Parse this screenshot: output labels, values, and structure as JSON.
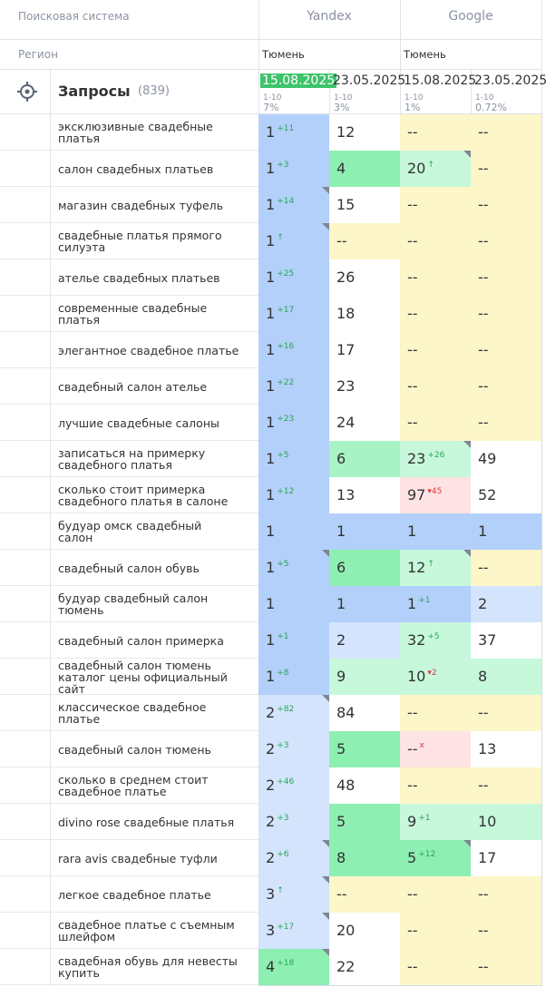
{
  "header": {
    "search_engine_label": "Поисковая система",
    "engines": [
      "Yandex",
      "Google"
    ],
    "region_label": "Регион",
    "regions": [
      "Тюмень",
      "Тюмень"
    ],
    "queries_label": "Запросы",
    "queries_count": "(839)",
    "dates": [
      {
        "date": "15.08.2025",
        "range": "1-10",
        "share": "7%",
        "highlight": true
      },
      {
        "date": "23.05.2025",
        "range": "1-10",
        "share": "3%",
        "highlight": false
      },
      {
        "date": "15.08.2025",
        "range": "1-10",
        "share": "1%",
        "highlight": false
      },
      {
        "date": "23.05.2025",
        "range": "1-10",
        "share": "0.72%",
        "highlight": false
      }
    ]
  },
  "rows": [
    {
      "query": "эксклюзивные свадебные платья",
      "cells": [
        {
          "value": 1,
          "change": "+11",
          "bg": "#b3d0fa"
        },
        {
          "value": 12,
          "bg": "#ffffff"
        },
        {
          "value": "--",
          "bg": "#fdf6c8"
        },
        {
          "value": "--",
          "bg": "#fdf6c8"
        }
      ]
    },
    {
      "query": "салон свадебных платьев",
      "cells": [
        {
          "value": 1,
          "change": "+3",
          "bg": "#b3d0fa"
        },
        {
          "value": 4,
          "bg": "#8eefb3"
        },
        {
          "value": 20,
          "change": "↑",
          "bg": "#c7f8dc",
          "corner": true
        },
        {
          "value": "--",
          "bg": "#fdf6c8"
        }
      ]
    },
    {
      "query": "магазин свадебных туфель",
      "cells": [
        {
          "value": 1,
          "change": "+14",
          "bg": "#b3d0fa",
          "corner": true
        },
        {
          "value": 15,
          "bg": "#ffffff"
        },
        {
          "value": "--",
          "bg": "#fdf6c8"
        },
        {
          "value": "--",
          "bg": "#fdf6c8"
        }
      ]
    },
    {
      "query": "свадебные платья прямого силуэта",
      "cells": [
        {
          "value": 1,
          "change": "↑",
          "bg": "#b3d0fa",
          "corner": true
        },
        {
          "value": "--",
          "bg": "#fdf6c8"
        },
        {
          "value": "--",
          "bg": "#fdf6c8"
        },
        {
          "value": "--",
          "bg": "#fdf6c8"
        }
      ]
    },
    {
      "query": "ателье свадебных платьев",
      "cells": [
        {
          "value": 1,
          "change": "+25",
          "bg": "#b3d0fa"
        },
        {
          "value": 26,
          "bg": "#ffffff"
        },
        {
          "value": "--",
          "bg": "#fdf6c8"
        },
        {
          "value": "--",
          "bg": "#fdf6c8"
        }
      ]
    },
    {
      "query": "современные свадебные платья",
      "cells": [
        {
          "value": 1,
          "change": "+17",
          "bg": "#b3d0fa"
        },
        {
          "value": 18,
          "bg": "#ffffff"
        },
        {
          "value": "--",
          "bg": "#fdf6c8"
        },
        {
          "value": "--",
          "bg": "#fdf6c8"
        }
      ]
    },
    {
      "query": "элегантное свадебное платье",
      "cells": [
        {
          "value": 1,
          "change": "+16",
          "bg": "#b3d0fa"
        },
        {
          "value": 17,
          "bg": "#ffffff"
        },
        {
          "value": "--",
          "bg": "#fdf6c8"
        },
        {
          "value": "--",
          "bg": "#fdf6c8"
        }
      ]
    },
    {
      "query": "свадебный салон ателье",
      "cells": [
        {
          "value": 1,
          "change": "+22",
          "bg": "#b3d0fa"
        },
        {
          "value": 23,
          "bg": "#ffffff"
        },
        {
          "value": "--",
          "bg": "#fdf6c8"
        },
        {
          "value": "--",
          "bg": "#fdf6c8"
        }
      ]
    },
    {
      "query": "лучшие свадебные салоны",
      "cells": [
        {
          "value": 1,
          "change": "+23",
          "bg": "#b3d0fa"
        },
        {
          "value": 24,
          "bg": "#ffffff"
        },
        {
          "value": "--",
          "bg": "#fdf6c8"
        },
        {
          "value": "--",
          "bg": "#fdf6c8"
        }
      ]
    },
    {
      "query": "записаться на примерку свадебного платья",
      "cells": [
        {
          "value": 1,
          "change": "+5",
          "bg": "#b3d0fa"
        },
        {
          "value": 6,
          "bg": "#a8f3c6"
        },
        {
          "value": 23,
          "change": "+26",
          "bg": "#c7f8dc",
          "corner": true
        },
        {
          "value": 49,
          "bg": "#ffffff"
        }
      ]
    },
    {
      "query": "сколько стоит примерка свадебного платья в салоне",
      "cells": [
        {
          "value": 1,
          "change": "+12",
          "bg": "#b3d0fa"
        },
        {
          "value": 13,
          "bg": "#ffffff"
        },
        {
          "value": 97,
          "change": "▾45",
          "bg": "#fde3e3"
        },
        {
          "value": 52,
          "bg": "#ffffff"
        }
      ]
    },
    {
      "query": "будуар омск свадебный салон",
      "cells": [
        {
          "value": 1,
          "bg": "#b3d0fa"
        },
        {
          "value": 1,
          "bg": "#b3d0fa"
        },
        {
          "value": 1,
          "bg": "#b3d0fa"
        },
        {
          "value": 1,
          "bg": "#b3d0fa"
        }
      ]
    },
    {
      "query": "свадебный салон обувь",
      "cells": [
        {
          "value": 1,
          "change": "+5",
          "bg": "#b3d0fa",
          "corner": true
        },
        {
          "value": 6,
          "bg": "#8eefb3"
        },
        {
          "value": 12,
          "change": "↑",
          "bg": "#c7f8dc",
          "corner": true
        },
        {
          "value": "--",
          "bg": "#fdf6c8"
        }
      ]
    },
    {
      "query": "будуар свадебный салон тюмень",
      "cells": [
        {
          "value": 1,
          "bg": "#b3d0fa"
        },
        {
          "value": 1,
          "bg": "#b3d0fa"
        },
        {
          "value": 1,
          "change": "+1",
          "bg": "#b3d0fa"
        },
        {
          "value": 2,
          "bg": "#d3e4fc"
        }
      ]
    },
    {
      "query": "свадебный салон примерка",
      "cells": [
        {
          "value": 1,
          "change": "+1",
          "bg": "#b3d0fa"
        },
        {
          "value": 2,
          "bg": "#d3e4fc"
        },
        {
          "value": 32,
          "change": "+5",
          "bg": "#c7f8dc"
        },
        {
          "value": 37,
          "bg": "#ffffff"
        }
      ]
    },
    {
      "query": "свадебный салон тюмень каталог цены официальный сайт",
      "cells": [
        {
          "value": 1,
          "change": "+8",
          "bg": "#b3d0fa"
        },
        {
          "value": 9,
          "bg": "#c7f8dc"
        },
        {
          "value": 10,
          "change": "▾2",
          "bg": "#c7f8dc"
        },
        {
          "value": 8,
          "bg": "#c7f8dc"
        }
      ]
    },
    {
      "query": "классическое свадебное платье",
      "cells": [
        {
          "value": 2,
          "change": "+82",
          "bg": "#d3e4fc",
          "corner": true
        },
        {
          "value": 84,
          "bg": "#ffffff"
        },
        {
          "value": "--",
          "bg": "#fdf6c8"
        },
        {
          "value": "--",
          "bg": "#fdf6c8"
        }
      ]
    },
    {
      "query": "свадебный салон тюмень",
      "cells": [
        {
          "value": 2,
          "change": "+3",
          "bg": "#d3e4fc"
        },
        {
          "value": 5,
          "bg": "#8eefb3"
        },
        {
          "value": "--",
          "change": "x",
          "bg": "#fde3e3"
        },
        {
          "value": 13,
          "bg": "#ffffff"
        }
      ]
    },
    {
      "query": "сколько в среднем стоит свадебное платье",
      "cells": [
        {
          "value": 2,
          "change": "+46",
          "bg": "#d3e4fc"
        },
        {
          "value": 48,
          "bg": "#ffffff"
        },
        {
          "value": "--",
          "bg": "#fdf6c8"
        },
        {
          "value": "--",
          "bg": "#fdf6c8"
        }
      ]
    },
    {
      "query": "divino rose свадебные платья",
      "cells": [
        {
          "value": 2,
          "change": "+3",
          "bg": "#d3e4fc"
        },
        {
          "value": 5,
          "bg": "#8eefb3"
        },
        {
          "value": 9,
          "change": "+1",
          "bg": "#c7f8dc"
        },
        {
          "value": 10,
          "bg": "#c7f8dc"
        }
      ]
    },
    {
      "query": "rara avis свадебные туфли",
      "cells": [
        {
          "value": 2,
          "change": "+6",
          "bg": "#d3e4fc",
          "corner": true
        },
        {
          "value": 8,
          "bg": "#8eefb3"
        },
        {
          "value": 5,
          "change": "+12",
          "bg": "#8eefb3",
          "corner": true
        },
        {
          "value": 17,
          "bg": "#ffffff"
        }
      ]
    },
    {
      "query": "легкое свадебное платье",
      "cells": [
        {
          "value": 3,
          "change": "↑",
          "bg": "#d3e4fc",
          "corner": true
        },
        {
          "value": "--",
          "bg": "#fdf6c8"
        },
        {
          "value": "--",
          "bg": "#fdf6c8"
        },
        {
          "value": "--",
          "bg": "#fdf6c8"
        }
      ]
    },
    {
      "query": "свадебное платье с съемным шлейфом",
      "cells": [
        {
          "value": 3,
          "change": "+17",
          "bg": "#d3e4fc",
          "corner": true
        },
        {
          "value": 20,
          "bg": "#ffffff"
        },
        {
          "value": "--",
          "bg": "#fdf6c8"
        },
        {
          "value": "--",
          "bg": "#fdf6c8"
        }
      ]
    },
    {
      "query": "свадебная обувь для невесты купить",
      "cells": [
        {
          "value": 4,
          "change": "+18",
          "bg": "#8eefb3",
          "corner": true
        },
        {
          "value": 22,
          "bg": "#ffffff"
        },
        {
          "value": "--",
          "bg": "#fdf6c8"
        },
        {
          "value": "--",
          "bg": "#fdf6c8"
        }
      ]
    }
  ]
}
